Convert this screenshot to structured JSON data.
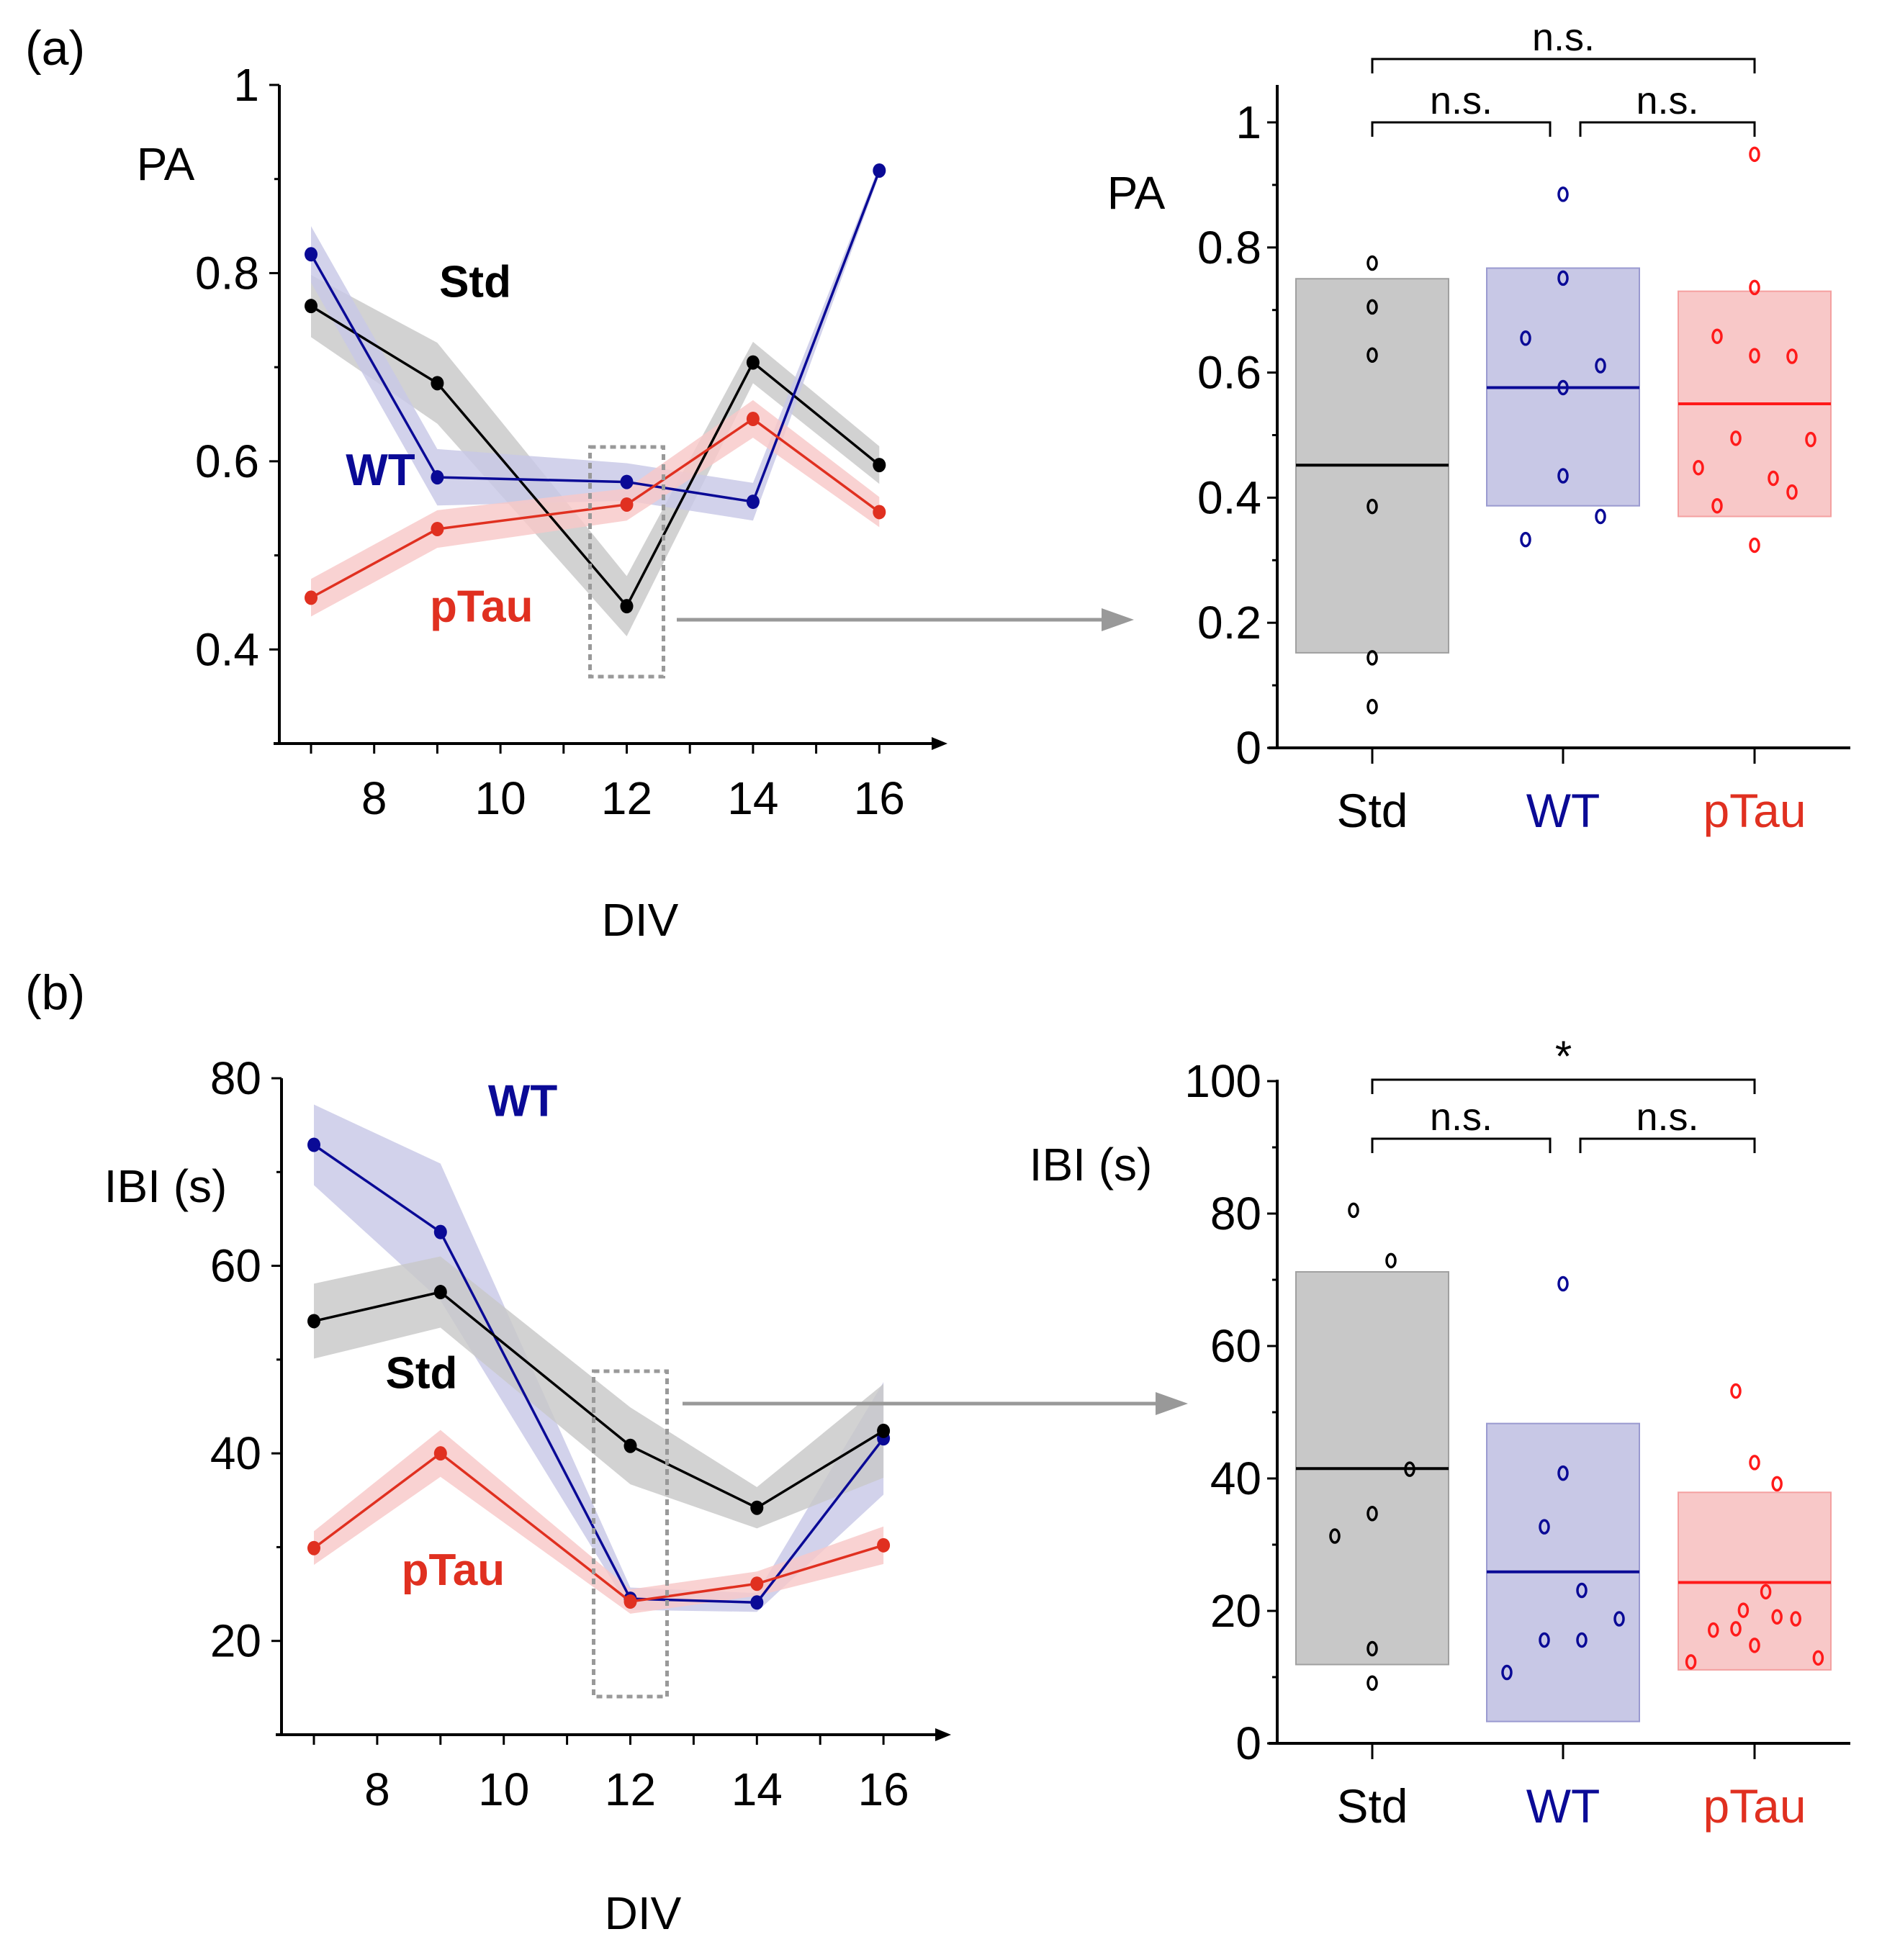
{
  "figure": {
    "panel_labels": [
      "(a)",
      "(b)"
    ],
    "colors": {
      "Std": "#000000",
      "WT": "#0a0a96",
      "pTau": "#e03020",
      "Std_fill": "#c8c8c8",
      "WT_fill": "#c8c8e6",
      "pTau_fill": "#f8c8c8",
      "pTau_point": "#ff1a1a",
      "arrow": "#999999",
      "zoom_box": "#999999"
    }
  },
  "chart_data": [
    {
      "id": "a-line",
      "type": "line",
      "title": "",
      "xlabel": "DIV",
      "ylabel": "PA",
      "x": [
        7,
        9,
        12,
        14,
        16
      ],
      "xticks": [
        8,
        10,
        12,
        14,
        16
      ],
      "xlim": [
        6.5,
        17.3
      ],
      "ylim": [
        0.3,
        1.0
      ],
      "yticks": [
        0.4,
        0.6,
        0.8,
        1.0
      ],
      "ytick_labels": [
        "0.4",
        "0.6",
        "0.8",
        "1"
      ],
      "highlight_x": 12,
      "series": [
        {
          "name": "Std",
          "values": [
            0.765,
            0.683,
            0.446,
            0.705,
            0.596
          ],
          "err": [
            0.033,
            0.043,
            0.032,
            0.022,
            0.02
          ],
          "label_at": [
            9.6,
            0.79
          ]
        },
        {
          "name": "WT",
          "values": [
            0.82,
            0.583,
            0.578,
            0.557,
            0.909
          ],
          "err": [
            0.03,
            0.03,
            0.02,
            0.02,
            0.005
          ],
          "label_at": [
            8.1,
            0.59
          ]
        },
        {
          "name": "pTau",
          "values": [
            0.455,
            0.528,
            0.554,
            0.645,
            0.546
          ],
          "err": [
            0.02,
            0.02,
            0.017,
            0.02,
            0.016
          ],
          "label_at": [
            9.7,
            0.445
          ]
        }
      ]
    },
    {
      "id": "a-box",
      "type": "scatter",
      "title": "",
      "xlabel": "",
      "ylabel": "PA",
      "categories": [
        "Std",
        "WT",
        "pTau"
      ],
      "ylim": [
        0,
        1.05
      ],
      "yticks": [
        0,
        0.2,
        0.4,
        0.6,
        0.8,
        1.0
      ],
      "ytick_labels": [
        "0",
        "0.2",
        "0.4",
        "0.6",
        "0.8",
        "1"
      ],
      "boxes": [
        {
          "name": "Std",
          "low": 0.152,
          "high": 0.75,
          "median": 0.452
        },
        {
          "name": "WT",
          "low": 0.387,
          "high": 0.767,
          "median": 0.576
        },
        {
          "name": "pTau",
          "low": 0.37,
          "high": 0.73,
          "median": 0.55
        }
      ],
      "points": [
        {
          "group": "Std",
          "values": [
            0.775,
            0.705,
            0.628,
            0.386,
            0.144,
            0.066
          ],
          "offsets": [
            0,
            0,
            0,
            0,
            0,
            0
          ]
        },
        {
          "group": "WT",
          "values": [
            0.885,
            0.751,
            0.655,
            0.611,
            0.576,
            0.435,
            0.37,
            0.333
          ],
          "offsets": [
            0,
            0,
            -1,
            1,
            0,
            0,
            1,
            -1
          ]
        },
        {
          "group": "pTau",
          "values": [
            0.949,
            0.736,
            0.658,
            0.627,
            0.626,
            0.495,
            0.493,
            0.448,
            0.431,
            0.409,
            0.387,
            0.324
          ],
          "offsets": [
            0,
            0,
            -1,
            0,
            1,
            -0.5,
            1.5,
            -1.5,
            0.5,
            1,
            -1,
            0
          ]
        }
      ],
      "significance": [
        {
          "from": "Std",
          "to": "WT",
          "label": "n.s."
        },
        {
          "from": "WT",
          "to": "pTau",
          "label": "n.s."
        },
        {
          "from": "Std",
          "to": "pTau",
          "label": "n.s."
        }
      ]
    },
    {
      "id": "b-line",
      "type": "line",
      "title": "",
      "xlabel": "DIV",
      "ylabel": "IBI (s)",
      "x": [
        7,
        9,
        12,
        14,
        16
      ],
      "xticks": [
        8,
        10,
        12,
        14,
        16
      ],
      "xlim": [
        6.5,
        17.3
      ],
      "ylim": [
        10,
        80
      ],
      "yticks": [
        20,
        40,
        60,
        80
      ],
      "ytick_labels": [
        "20",
        "40",
        "60",
        "80"
      ],
      "highlight_x": 12,
      "series": [
        {
          "name": "WT",
          "values": [
            72.9,
            63.6,
            24.5,
            24.1,
            41.6
          ],
          "err": [
            4.3,
            7.3,
            1.2,
            1.0,
            6.0
          ],
          "label_at": [
            10.3,
            77.5
          ]
        },
        {
          "name": "Std",
          "values": [
            54.1,
            57.2,
            40.8,
            34.2,
            42.4
          ],
          "err": [
            4.0,
            3.8,
            4.1,
            2.2,
            5.0
          ],
          "label_at": [
            8.7,
            48.5
          ]
        },
        {
          "name": "pTau",
          "values": [
            29.9,
            40.0,
            24.2,
            26.1,
            30.2
          ],
          "err": [
            1.8,
            2.5,
            1.3,
            1.3,
            2.0
          ],
          "label_at": [
            9.2,
            27.5
          ]
        }
      ]
    },
    {
      "id": "b-box",
      "type": "scatter",
      "title": "",
      "xlabel": "",
      "ylabel": "IBI (s)",
      "categories": [
        "Std",
        "WT",
        "pTau"
      ],
      "ylim": [
        0,
        100
      ],
      "yticks": [
        0,
        20,
        40,
        60,
        80,
        100
      ],
      "ytick_labels": [
        "0",
        "20",
        "40",
        "60",
        "80",
        "100"
      ],
      "boxes": [
        {
          "name": "Std",
          "low": 11.9,
          "high": 71.2,
          "median": 41.5
        },
        {
          "name": "WT",
          "low": 3.3,
          "high": 48.3,
          "median": 25.9
        },
        {
          "name": "pTau",
          "low": 11.1,
          "high": 37.9,
          "median": 24.3
        }
      ],
      "points": [
        {
          "group": "Std",
          "values": [
            80.5,
            72.9,
            41.4,
            34.7,
            31.3,
            14.3,
            9.1
          ],
          "offsets": [
            -0.5,
            0.5,
            1,
            0,
            -1,
            0,
            0
          ]
        },
        {
          "group": "WT",
          "values": [
            69.4,
            40.8,
            32.7,
            23.1,
            18.8,
            15.6,
            15.6,
            10.7
          ],
          "offsets": [
            0,
            0,
            -0.5,
            0.5,
            1.5,
            -0.5,
            0.5,
            -1.5
          ]
        },
        {
          "group": "pTau",
          "values": [
            53.2,
            42.4,
            39.2,
            22.9,
            20.1,
            19.1,
            18.8,
            17.1,
            17.3,
            14.8,
            12.9,
            12.3
          ],
          "offsets": [
            -0.5,
            0,
            0.6,
            0.3,
            -0.3,
            0.6,
            1.1,
            -1.1,
            -0.5,
            0,
            1.7,
            -1.7
          ]
        }
      ],
      "significance": [
        {
          "from": "Std",
          "to": "WT",
          "label": "n.s."
        },
        {
          "from": "WT",
          "to": "pTau",
          "label": "n.s."
        },
        {
          "from": "Std",
          "to": "pTau",
          "label": "*"
        }
      ]
    }
  ]
}
